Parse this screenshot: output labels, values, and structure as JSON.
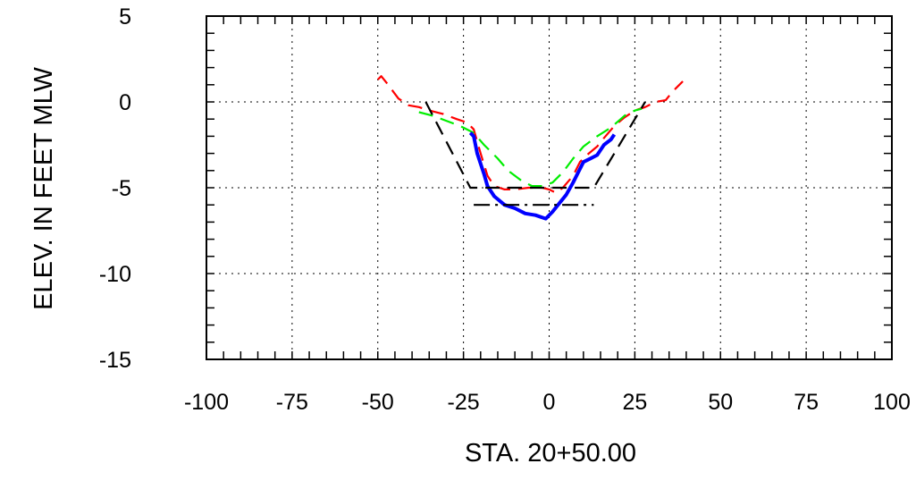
{
  "chart_data": {
    "type": "line",
    "xlabel": "STA. 20+50.00",
    "ylabel": "ELEV. IN FEET MLW",
    "xlim": [
      -100,
      100
    ],
    "ylim": [
      -15,
      5
    ],
    "x_ticks": [
      -100,
      -75,
      -50,
      -25,
      0,
      25,
      50,
      75,
      100
    ],
    "y_ticks": [
      5,
      0,
      -5,
      -10,
      -15
    ],
    "x_tick_labels": [
      "-100",
      "-75",
      "-50",
      "-25",
      "0",
      "25",
      "50",
      "75",
      "100"
    ],
    "y_tick_labels": [
      "5",
      "0",
      "-5",
      "-10",
      "-15"
    ],
    "x_minor_step": 5,
    "y_minor_step": 1,
    "grid": true,
    "series": [
      {
        "color": "#ff0000",
        "style": "dashed",
        "points": [
          [
            -50,
            1.3
          ],
          [
            -49,
            1.5
          ],
          [
            -47,
            1.0
          ],
          [
            -44,
            0.2
          ],
          [
            -41,
            -0.2
          ],
          [
            -38,
            -0.3
          ],
          [
            -35,
            -0.5
          ],
          [
            -31,
            -0.7
          ],
          [
            -27,
            -1.0
          ],
          [
            -24,
            -1.2
          ],
          [
            -22,
            -1.6
          ],
          [
            -20,
            -3.0
          ],
          [
            -18,
            -4.3
          ],
          [
            -16,
            -4.9
          ],
          [
            -13,
            -5.1
          ],
          [
            -10,
            -5.1
          ],
          [
            -6,
            -5.0
          ],
          [
            -2,
            -5.0
          ],
          [
            0,
            -5.1
          ],
          [
            2,
            -5.3
          ],
          [
            4,
            -5.0
          ],
          [
            7,
            -4.3
          ],
          [
            9,
            -3.5
          ],
          [
            11,
            -3.1
          ],
          [
            14,
            -2.6
          ],
          [
            16,
            -2.1
          ],
          [
            19,
            -1.4
          ],
          [
            22,
            -0.9
          ],
          [
            25,
            -0.5
          ],
          [
            28,
            -0.3
          ],
          [
            31,
            0.0
          ],
          [
            34,
            0.1
          ],
          [
            36,
            0.6
          ],
          [
            39,
            1.2
          ]
        ]
      },
      {
        "color": "#00ee00",
        "style": "dashed",
        "points": [
          [
            -38,
            -0.6
          ],
          [
            -34,
            -0.8
          ],
          [
            -30,
            -1.1
          ],
          [
            -26,
            -1.4
          ],
          [
            -22,
            -1.8
          ],
          [
            -19,
            -2.5
          ],
          [
            -15,
            -3.3
          ],
          [
            -12,
            -4.0
          ],
          [
            -8,
            -4.6
          ],
          [
            -5,
            -4.9
          ],
          [
            -2,
            -4.9
          ],
          [
            1,
            -4.7
          ],
          [
            4,
            -4.1
          ],
          [
            7,
            -3.3
          ],
          [
            10,
            -2.6
          ],
          [
            14,
            -2.0
          ],
          [
            18,
            -1.5
          ],
          [
            22,
            -0.8
          ],
          [
            25,
            -0.5
          ],
          [
            27,
            -0.4
          ]
        ]
      },
      {
        "color": "#0000ff",
        "style": "solid",
        "points": [
          [
            -23,
            -1.8
          ],
          [
            -22,
            -2.0
          ],
          [
            -21,
            -3.0
          ],
          [
            -19,
            -4.2
          ],
          [
            -18,
            -4.9
          ],
          [
            -16,
            -5.5
          ],
          [
            -13,
            -6.0
          ],
          [
            -10,
            -6.2
          ],
          [
            -7,
            -6.5
          ],
          [
            -4,
            -6.6
          ],
          [
            -1,
            -6.8
          ],
          [
            1,
            -6.4
          ],
          [
            3,
            -5.9
          ],
          [
            5,
            -5.4
          ],
          [
            7,
            -4.7
          ],
          [
            9,
            -3.9
          ],
          [
            10,
            -3.5
          ],
          [
            12,
            -3.3
          ],
          [
            14,
            -3.1
          ],
          [
            15,
            -2.8
          ],
          [
            16,
            -2.5
          ],
          [
            18,
            -2.2
          ],
          [
            19,
            -1.9
          ]
        ]
      },
      {
        "color": "#000000",
        "style": "dashed",
        "points": [
          [
            -36,
            0.0
          ],
          [
            -23,
            -5.0
          ],
          [
            13,
            -5.0
          ],
          [
            28,
            0.0
          ]
        ]
      },
      {
        "color": "#000000",
        "style": "dashdot",
        "points": [
          [
            -22,
            -6.0
          ],
          [
            13,
            -6.0
          ]
        ]
      }
    ]
  }
}
